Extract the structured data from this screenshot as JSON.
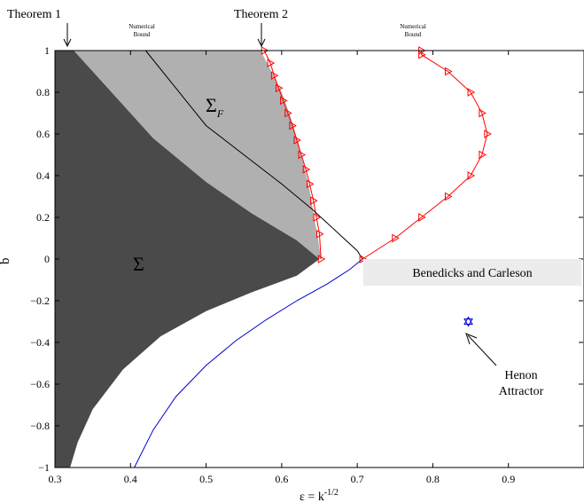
{
  "chart_data": {
    "type": "line",
    "xlabel": "ε = k^{-1/2}",
    "ylabel": "b",
    "xlim": [
      0.3,
      1.0
    ],
    "ylim": [
      -1,
      1
    ],
    "x_ticks": [
      "0.3",
      "0.4",
      "0.5",
      "0.6",
      "0.7",
      "0.8",
      "0.9"
    ],
    "y_ticks": [
      "1",
      "0.8",
      "0.6",
      "0.4",
      "0.2",
      "0",
      "−0.2",
      "−0.4",
      "−0.6",
      "−0.8",
      "−1"
    ],
    "grid": false,
    "colors": {
      "sigma_region": "#4a4a4a",
      "sigma_f_region": "#b0b0b0",
      "red_series": "#ff0000",
      "blue_curve": "#0000cc",
      "black_curve": "#000000",
      "box_fill": "#ececec"
    },
    "regions": [
      {
        "label": "Σ",
        "boundary": [
          [
            0.3,
            1
          ],
          [
            0.325,
            1
          ],
          [
            0.37,
            0.82
          ],
          [
            0.43,
            0.58
          ],
          [
            0.5,
            0.37
          ],
          [
            0.56,
            0.22
          ],
          [
            0.62,
            0.09
          ],
          [
            0.65,
            0.0
          ],
          [
            0.62,
            -0.08
          ],
          [
            0.56,
            -0.16
          ],
          [
            0.5,
            -0.25
          ],
          [
            0.44,
            -0.37
          ],
          [
            0.39,
            -0.53
          ],
          [
            0.35,
            -0.72
          ],
          [
            0.33,
            -0.88
          ],
          [
            0.32,
            -1
          ],
          [
            0.3,
            -1
          ]
        ]
      },
      {
        "label": "Σ_F",
        "boundary": [
          [
            0.325,
            1
          ],
          [
            0.572,
            1
          ],
          [
            0.585,
            0.91
          ],
          [
            0.6,
            0.8
          ],
          [
            0.612,
            0.68
          ],
          [
            0.622,
            0.56
          ],
          [
            0.63,
            0.44
          ],
          [
            0.637,
            0.33
          ],
          [
            0.643,
            0.2
          ],
          [
            0.648,
            0.1
          ],
          [
            0.652,
            0.0
          ],
          [
            0.65,
            0.0
          ],
          [
            0.62,
            0.09
          ],
          [
            0.56,
            0.22
          ],
          [
            0.5,
            0.37
          ],
          [
            0.43,
            0.58
          ],
          [
            0.37,
            0.82
          ]
        ]
      }
    ],
    "series": [
      {
        "marker": "triangle-right",
        "color": "#ff0000",
        "x": [
          0.577,
          0.585,
          0.59,
          0.596,
          0.602,
          0.608,
          0.614,
          0.62,
          0.626,
          0.632,
          0.637,
          0.642,
          0.646,
          0.65,
          0.652
        ],
        "y": [
          1.0,
          0.94,
          0.88,
          0.82,
          0.76,
          0.7,
          0.64,
          0.57,
          0.5,
          0.43,
          0.36,
          0.28,
          0.2,
          0.12,
          0.0
        ]
      },
      {
        "marker": "triangle-right",
        "color": "#ff0000",
        "x": [
          0.707,
          0.75,
          0.785,
          0.82,
          0.85,
          0.865,
          0.872,
          0.865,
          0.85,
          0.82,
          0.785,
          0.785
        ],
        "y": [
          0.0,
          0.1,
          0.2,
          0.3,
          0.4,
          0.5,
          0.6,
          0.7,
          0.8,
          0.9,
          0.98,
          1.0
        ]
      },
      {
        "marker": "none",
        "color": "#000000",
        "x": [
          0.42,
          0.46,
          0.5,
          0.55,
          0.6,
          0.64,
          0.67,
          0.7,
          0.707
        ],
        "y": [
          1.0,
          0.82,
          0.64,
          0.5,
          0.36,
          0.24,
          0.14,
          0.04,
          0.0
        ]
      },
      {
        "marker": "none",
        "color": "#0000cc",
        "x": [
          0.707,
          0.69,
          0.66,
          0.62,
          0.58,
          0.54,
          0.5,
          0.46,
          0.43,
          0.405
        ],
        "y": [
          0.0,
          -0.05,
          -0.12,
          -0.2,
          -0.29,
          -0.39,
          -0.51,
          -0.66,
          -0.82,
          -1.0
        ]
      }
    ],
    "henon_attractor": {
      "x": 0.847,
      "y": -0.3
    },
    "annotations": {
      "theorem1": "Theorem 1",
      "theorem2": "Theorem 2",
      "numerical_bound": "Numerical",
      "numerical_bound_2": "Bound",
      "sigma_label": "Σ",
      "sigma_f_label": "Σ",
      "sigma_f_sub": "F",
      "benedicks": "Benedicks and Carleson",
      "henon": "Henon",
      "attractor": "Attractor"
    }
  }
}
